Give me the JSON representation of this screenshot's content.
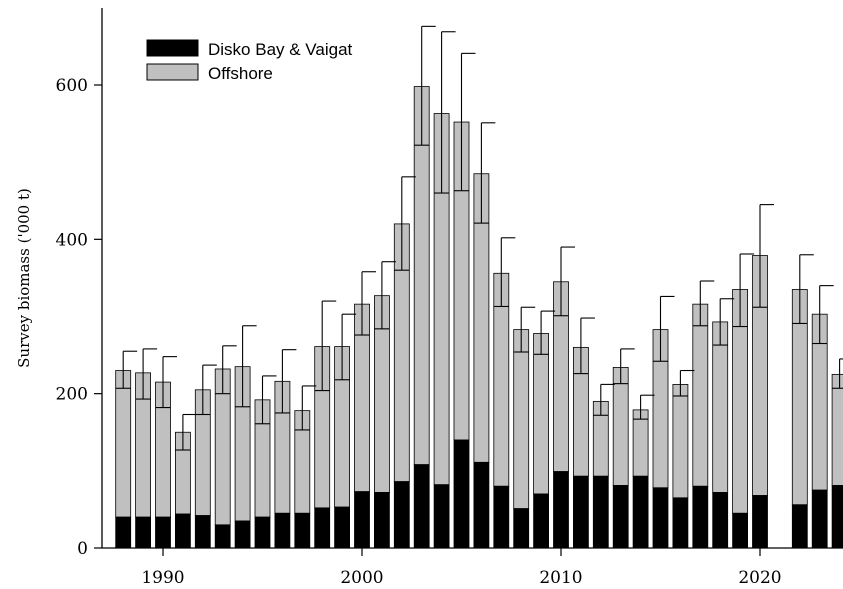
{
  "chart_data": {
    "type": "bar",
    "stacked": true,
    "ylabel": "Survey biomass  ('000 t)",
    "xlabel": "",
    "ylim": [
      0,
      700
    ],
    "xlim": [
      1987.3,
      2024.0
    ],
    "yticks": [
      0,
      200,
      400,
      600
    ],
    "xticks": [
      1990,
      2000,
      2010,
      2020
    ],
    "legend_position": "top-left",
    "grid": false,
    "categories": [
      1988,
      1989,
      1990,
      1991,
      1992,
      1993,
      1994,
      1995,
      1996,
      1997,
      1998,
      1999,
      2000,
      2001,
      2002,
      2003,
      2004,
      2005,
      2006,
      2007,
      2008,
      2009,
      2010,
      2011,
      2012,
      2013,
      2014,
      2015,
      2016,
      2017,
      2018,
      2019,
      2020,
      2022,
      2023,
      2024
    ],
    "series": [
      {
        "name": "Disko Bay & Vaigat",
        "color": "#000000",
        "values": [
          40,
          40,
          40,
          44,
          42,
          30,
          35,
          40,
          45,
          45,
          52,
          53,
          73,
          72,
          86,
          108,
          82,
          140,
          111,
          80,
          51,
          70,
          99,
          93,
          93,
          81,
          93,
          78,
          65,
          80,
          72,
          45,
          68,
          56,
          75,
          81
        ]
      },
      {
        "name": "Offshore",
        "color": "#c0c0c0",
        "values": [
          190,
          187,
          175,
          106,
          163,
          202,
          200,
          152,
          171,
          133,
          209,
          208,
          243,
          255,
          334,
          490,
          481,
          412,
          374,
          276,
          232,
          208,
          246,
          167,
          97,
          153,
          86,
          205,
          147,
          236,
          221,
          290,
          311,
          279,
          228,
          144
        ]
      }
    ],
    "error_bars": {
      "upper": [
        255,
        258,
        248,
        173,
        237,
        262,
        288,
        223,
        257,
        210,
        320,
        303,
        358,
        371,
        481,
        676,
        669,
        641,
        551,
        402,
        312,
        307,
        390,
        298,
        212,
        258,
        198,
        326,
        230,
        346,
        323,
        381,
        445,
        380,
        340,
        245
      ],
      "lower": [
        207,
        193,
        182,
        127,
        173,
        200,
        183,
        161,
        175,
        153,
        204,
        218,
        276,
        284,
        360,
        522,
        460,
        463,
        421,
        313,
        254,
        251,
        301,
        226,
        172,
        213,
        167,
        242,
        197,
        288,
        263,
        287,
        312,
        291,
        265,
        207
      ]
    }
  }
}
